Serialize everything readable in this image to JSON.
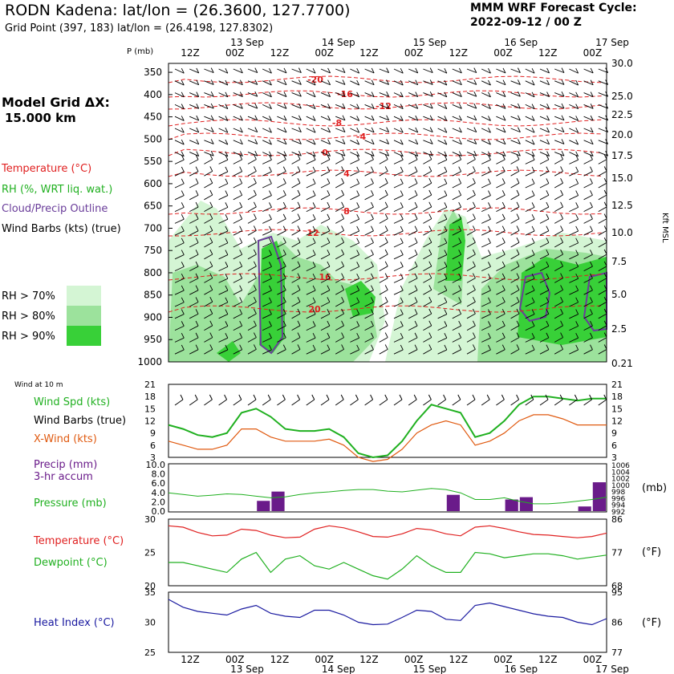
{
  "header": {
    "title": "RODN Kadena:  lat/lon = (26.3600, 127.7700)",
    "subtitle": "Grid Point (397, 183) lat/lon = (26.4198, 127.8302)",
    "cycle_line1": "MMM WRF Forecast Cycle:",
    "cycle_line2": "2022-09-12 / 00  Z",
    "grid_line1": "Model Grid ΔX:",
    "grid_line2": "15.000 km"
  },
  "legend": {
    "temperature": "Temperature (°C)",
    "rh": "RH (%, WRT liq. wat.)",
    "cloud": "Cloud/Precip Outline",
    "barbs": "Wind Barbs (kts) (true)",
    "rh70": "RH > 70%",
    "rh80": "RH > 80%",
    "rh90": "RH > 90%",
    "wind_at": "Wind at 10 m",
    "wind_spd": "Wind Spd (kts)",
    "wind_barbs": "Wind Barbs (true)",
    "xwind": "X-Wind (kts)",
    "precip1": "Precip (mm)",
    "precip2": "3-hr accum",
    "pressure": "Pressure (mb)",
    "temp_c": "Temperature (°C)",
    "dewpoint": "Dewpoint (°C)",
    "heat_index": "Heat Index (°C)"
  },
  "colors": {
    "temperature": "#e02020",
    "rh": "#20b020",
    "cloud": "#6a3d9a",
    "xwind": "#e05a10",
    "precip": "#6a1b8a",
    "heat_index": "#1a1aa0",
    "rh70": "#d4f5d4",
    "rh80": "#9ce29c",
    "rh90": "#38d038"
  },
  "chart_data": {
    "time_axis": {
      "type": "time",
      "top_ticks": [
        "12Z",
        "00Z",
        "12Z",
        "00Z",
        "12Z",
        "00Z",
        "12Z",
        "00Z",
        "12Z",
        "00Z"
      ],
      "date_labels": [
        "13 Sep",
        "14 Sep",
        "15 Sep",
        "16 Sep",
        "17 Sep"
      ],
      "bottom_ticks": [
        "12Z",
        "00Z",
        "12Z",
        "00Z",
        "12Z",
        "00Z",
        "12Z",
        "00Z",
        "12Z",
        "00Z"
      ]
    },
    "cross_section": {
      "type": "heatmap",
      "ylabel": "P (mb)",
      "y_ticks": [
        "350",
        "400",
        "450",
        "500",
        "550",
        "600",
        "650",
        "700",
        "750",
        "800",
        "850",
        "900",
        "950",
        "1000"
      ],
      "right_label": "Kft MSL",
      "right_ticks": [
        "30.0",
        "25.0",
        "22.5",
        "20.0",
        "17.5",
        "15.0",
        "12.5",
        "10.0",
        "7.5",
        "5.0",
        "2.5",
        "0.21"
      ],
      "temp_labels": [
        "-20",
        "-16",
        "-12",
        "-8",
        "-4",
        "0",
        "4",
        "8",
        "12",
        "16",
        "20"
      ]
    },
    "wind": {
      "type": "line",
      "y_ticks": [
        "3",
        "6",
        "9",
        "12",
        "15",
        "18",
        "21"
      ],
      "right_ticks": [
        "3",
        "6",
        "9",
        "12",
        "15",
        "18",
        "21"
      ],
      "series": [
        {
          "name": "Wind Spd (kts)",
          "values": [
            11,
            10,
            8.5,
            8,
            9,
            14,
            15,
            13,
            10,
            9.5,
            9.5,
            10,
            8,
            4,
            3,
            3.5,
            7,
            12,
            16,
            15,
            14,
            8,
            9,
            12,
            16,
            18,
            18,
            17.5,
            17,
            17.5,
            17.5
          ]
        },
        {
          "name": "X-Wind (kts)",
          "values": [
            7,
            6,
            5,
            5,
            6,
            10,
            10,
            8,
            7,
            7,
            7,
            7.5,
            6,
            3,
            2,
            2.5,
            5,
            9,
            11,
            12,
            11,
            6,
            7,
            9,
            12,
            13.5,
            13.5,
            12.5,
            11,
            11,
            11
          ]
        }
      ]
    },
    "precip_pressure": {
      "type": "bar",
      "y_ticks": [
        "0.0",
        "2.0",
        "4.0",
        "6.0",
        "8.0",
        "10.0"
      ],
      "right_ticks": [
        "992",
        "994",
        "996",
        "998",
        "1000",
        "1002",
        "1004",
        "1006"
      ],
      "precip_values": [
        0,
        0,
        0,
        0,
        0,
        0,
        2.2,
        4.2,
        0,
        0,
        0,
        0,
        0,
        0,
        0,
        0,
        0,
        0,
        0,
        3.5,
        0,
        0,
        0,
        2.5,
        3,
        0,
        0,
        0,
        1,
        6.2
      ],
      "pressure_values": [
        997.5,
        997,
        996.5,
        996.8,
        997.2,
        997,
        996.5,
        996,
        996.3,
        997,
        997.5,
        997.8,
        998.2,
        998.5,
        998.5,
        998,
        997.8,
        998.3,
        998.8,
        998.5,
        997.5,
        995.5,
        995.5,
        996,
        995,
        994.2,
        994.2,
        994.5,
        995,
        995.5,
        996.2
      ]
    },
    "temp_dew": {
      "type": "line",
      "y_ticks": [
        "20",
        "25",
        "30"
      ],
      "right_ticks": [
        "68",
        "77",
        "86"
      ],
      "series": [
        {
          "name": "Temperature (°C)",
          "values": [
            29,
            28.8,
            28,
            27.5,
            27.6,
            28.5,
            28.3,
            27.6,
            27.2,
            27.3,
            28.5,
            29,
            28.7,
            28.1,
            27.4,
            27.3,
            27.8,
            28.6,
            28.4,
            27.8,
            27.5,
            28.8,
            29,
            28.6,
            28.1,
            27.7,
            27.6,
            27.4,
            27.2,
            27.4,
            27.9
          ]
        },
        {
          "name": "Dewpoint (°C)",
          "values": [
            23.5,
            23.5,
            23,
            22.5,
            22,
            24,
            25,
            22,
            24,
            24.5,
            23,
            22.5,
            23.5,
            22.5,
            21.5,
            21,
            22.5,
            24.5,
            23,
            22,
            22,
            25,
            24.8,
            24.2,
            24.5,
            24.8,
            24.8,
            24.5,
            24,
            24.3,
            24.6
          ]
        }
      ]
    },
    "heat_index": {
      "type": "line",
      "y_ticks": [
        "25",
        "30",
        "35"
      ],
      "right_ticks": [
        "77",
        "86",
        "95"
      ],
      "series": [
        {
          "name": "Heat Index (°C)",
          "values": [
            33.8,
            32.5,
            31.8,
            31.5,
            31.2,
            32.2,
            32.8,
            31.5,
            31,
            30.8,
            32,
            32,
            31.2,
            30,
            29.6,
            29.7,
            30.8,
            32,
            31.8,
            30.5,
            30.3,
            32.8,
            33.2,
            32.6,
            32,
            31.4,
            31,
            30.8,
            30,
            29.6,
            30.6
          ]
        }
      ]
    }
  }
}
